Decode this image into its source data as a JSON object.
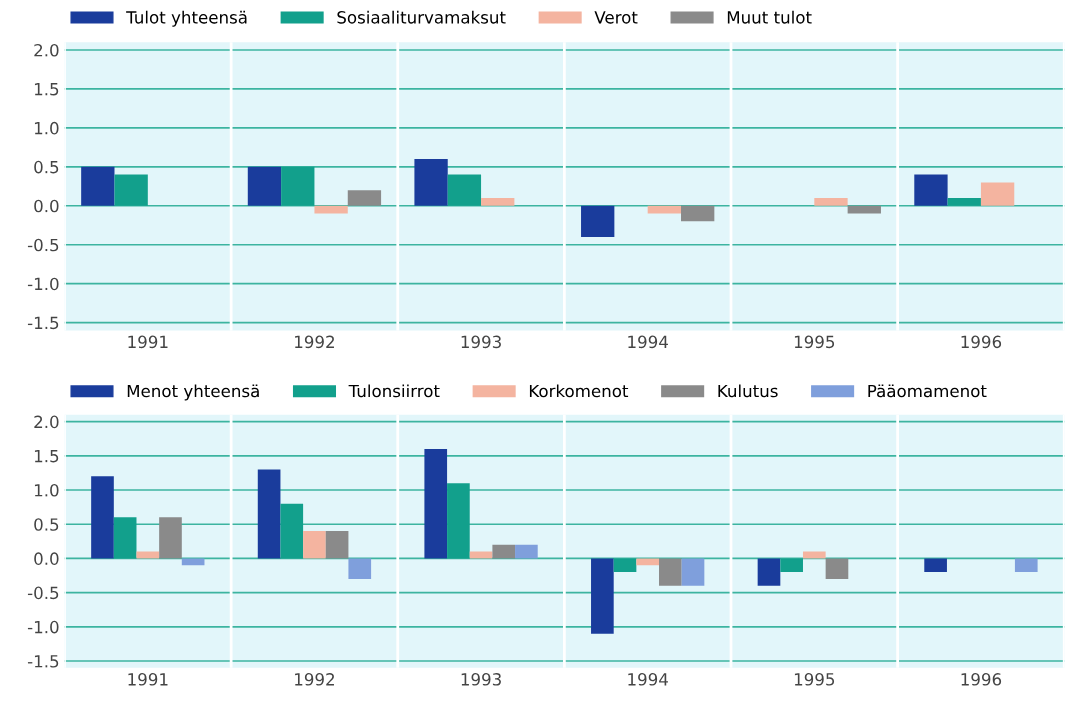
{
  "chart_data": [
    {
      "type": "bar",
      "categories": [
        "1991",
        "1992",
        "1993",
        "1994",
        "1995",
        "1996"
      ],
      "series": [
        {
          "name": "Tulot yhteensä",
          "color": "#1a3c9c",
          "values": [
            0.5,
            0.5,
            0.6,
            -0.4,
            null,
            0.4
          ]
        },
        {
          "name": "Sosiaaliturvamaksut",
          "color": "#12a08c",
          "values": [
            0.4,
            0.5,
            0.4,
            null,
            null,
            0.1
          ]
        },
        {
          "name": "Verot",
          "color": "#f4b4a0",
          "values": [
            null,
            -0.1,
            0.1,
            -0.1,
            0.1,
            0.3
          ]
        },
        {
          "name": "Muut tulot",
          "color": "#8a8a8a",
          "values": [
            null,
            0.2,
            null,
            -0.2,
            -0.1,
            null
          ]
        }
      ],
      "ylim": [
        -1.6,
        2.1
      ],
      "yticks": [
        {
          "value": 2.0,
          "label": "2.0"
        },
        {
          "value": 1.5,
          "label": "1.5"
        },
        {
          "value": 1.0,
          "label": "1.0"
        },
        {
          "value": 0.5,
          "label": "0.5"
        },
        {
          "value": 0.0,
          "label": "0.0"
        },
        {
          "value": -0.5,
          "label": "-0.5"
        },
        {
          "value": -1.0,
          "label": "-1.0"
        },
        {
          "value": -1.5,
          "label": "-1.5"
        }
      ],
      "grid": "y",
      "legend": "top"
    },
    {
      "type": "bar",
      "categories": [
        "1991",
        "1992",
        "1993",
        "1994",
        "1995",
        "1996"
      ],
      "series": [
        {
          "name": "Menot yhteensä",
          "color": "#1a3c9c",
          "values": [
            1.2,
            1.3,
            1.6,
            -1.1,
            -0.4,
            -0.2
          ]
        },
        {
          "name": "Tulonsiirrot",
          "color": "#12a08c",
          "values": [
            0.6,
            0.8,
            1.1,
            -0.2,
            -0.2,
            null
          ]
        },
        {
          "name": "Korkomenot",
          "color": "#f4b4a0",
          "values": [
            0.1,
            0.4,
            0.1,
            -0.1,
            0.1,
            null
          ]
        },
        {
          "name": "Kulutus",
          "color": "#8a8a8a",
          "values": [
            0.6,
            0.4,
            0.2,
            -0.4,
            -0.3,
            null
          ]
        },
        {
          "name": "Pääomamenot",
          "color": "#7f9fdc",
          "values": [
            -0.1,
            -0.3,
            0.2,
            -0.4,
            null,
            -0.2
          ]
        }
      ],
      "ylim": [
        -1.6,
        2.1
      ],
      "yticks": [
        {
          "value": 2.0,
          "label": "2.0"
        },
        {
          "value": 1.5,
          "label": "1.5"
        },
        {
          "value": 1.0,
          "label": "1.0"
        },
        {
          "value": 0.5,
          "label": "0.5"
        },
        {
          "value": 0.0,
          "label": "0.0"
        },
        {
          "value": -0.5,
          "label": "-0.5"
        },
        {
          "value": -1.0,
          "label": "-1.0"
        },
        {
          "value": -1.5,
          "label": "-1.5"
        }
      ],
      "grid": "y",
      "legend": "top"
    }
  ]
}
